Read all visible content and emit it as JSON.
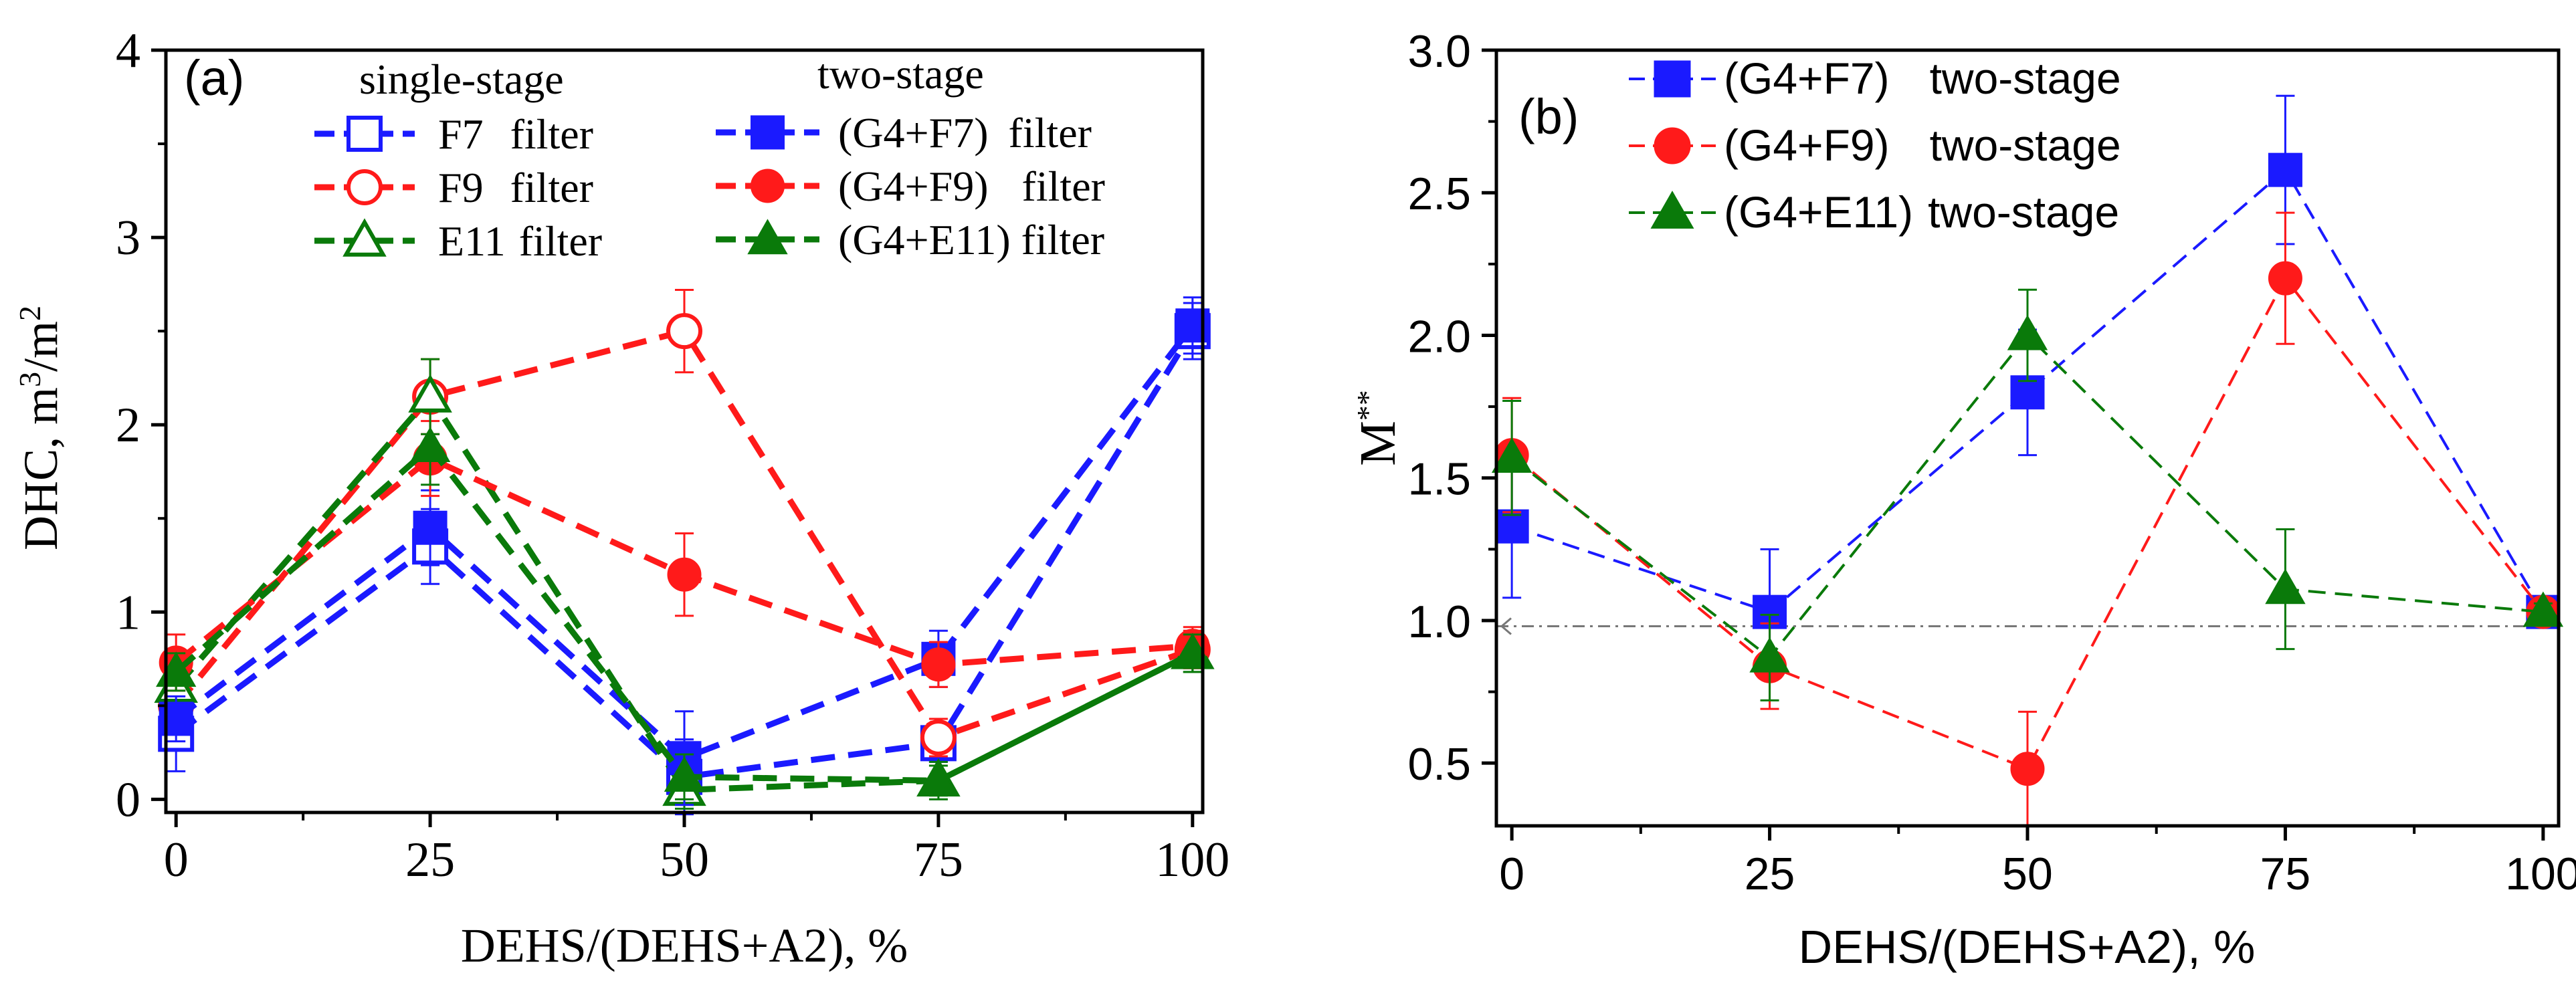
{
  "chart_data": [
    {
      "panel": "(a)",
      "type": "line",
      "xlabel": "DEHS/(DEHS+A2), %",
      "ylabel": "DHC, m",
      "ylabel_sup1": "3",
      "ylabel_mid": "/m",
      "ylabel_sup2": "2",
      "xlim": [
        -1,
        101
      ],
      "ylim": [
        -0.07,
        4.0
      ],
      "xticks": [
        0,
        25,
        50,
        75,
        100
      ],
      "xtick_labels": [
        "0",
        "25",
        "50",
        "75",
        "100"
      ],
      "yticks": [
        0,
        1,
        2,
        3,
        4
      ],
      "ytick_labels": [
        "0",
        "1",
        "2",
        "3",
        "4"
      ],
      "legend_titles": [
        "single-stage",
        "two-stage"
      ],
      "x": [
        0,
        25,
        50,
        75,
        100
      ],
      "series": [
        {
          "name": "F7",
          "label_suffix": "filter",
          "group": "single-stage",
          "color": "#1a1aff",
          "marker": "square",
          "filled": false,
          "values": [
            0.35,
            1.35,
            0.12,
            0.3,
            2.5
          ],
          "errors": [
            0.2,
            0.2,
            0.2,
            0.1,
            0.15
          ]
        },
        {
          "name": "F9",
          "label_suffix": "filter",
          "group": "single-stage",
          "color": "#ff1a1a",
          "marker": "circle",
          "filled": false,
          "values": [
            0.5,
            2.15,
            2.5,
            0.33,
            0.8
          ],
          "errors": [
            0.15,
            0.2,
            0.22,
            0.1,
            0.1
          ]
        },
        {
          "name": "E11",
          "label_suffix": "filter",
          "group": "single-stage",
          "color": "#0a7a0a",
          "marker": "triangle",
          "filled": false,
          "values": [
            0.6,
            2.15,
            0.05,
            0.1,
            0.78
          ],
          "errors": [
            0.1,
            0.2,
            0.1,
            0.08,
            0.1
          ]
        },
        {
          "name": "(G4+F7)",
          "label_suffix": "filter",
          "group": "two-stage",
          "color": "#1a1aff",
          "marker": "square",
          "filled": true,
          "values": [
            0.43,
            1.45,
            0.22,
            0.75,
            2.53
          ],
          "errors": [
            0.12,
            0.2,
            0.25,
            0.15,
            0.15
          ]
        },
        {
          "name": "(G4+F9)",
          "label_suffix": "filter",
          "group": "two-stage",
          "color": "#ff1a1a",
          "marker": "circle",
          "filled": true,
          "values": [
            0.73,
            1.82,
            1.2,
            0.72,
            0.82
          ],
          "errors": [
            0.15,
            0.2,
            0.22,
            0.12,
            0.1
          ]
        },
        {
          "name": "(G4+E11)",
          "label_suffix": "filter",
          "group": "two-stage",
          "color": "#0a7a0a",
          "marker": "triangle",
          "filled": true,
          "values": [
            0.68,
            1.88,
            0.12,
            0.1,
            0.78
          ],
          "errors": [
            0.1,
            0.2,
            0.12,
            0.1,
            0.1
          ]
        }
      ]
    },
    {
      "panel": "(b)",
      "type": "line",
      "xlabel": "DEHS/(DEHS+A2), %",
      "ylabel": "M",
      "ylabel_sup": "**",
      "xlim": [
        -1.5,
        101.5
      ],
      "ylim": [
        0.28,
        3.0
      ],
      "xticks": [
        0,
        25,
        50,
        75,
        100
      ],
      "xtick_labels": [
        "0",
        "25",
        "50",
        "75",
        "100"
      ],
      "yticks": [
        0.5,
        1.0,
        1.5,
        2.0,
        2.5,
        3.0
      ],
      "ytick_labels": [
        "0.5",
        "1.0",
        "1.5",
        "2.0",
        "2.5",
        "3.0"
      ],
      "reference_line": 0.98,
      "x": [
        0,
        25,
        50,
        75,
        100
      ],
      "series": [
        {
          "name": "(G4+F7)",
          "label_suffix": "two-stage",
          "color": "#1a1aff",
          "marker": "square",
          "filled": true,
          "values": [
            1.33,
            1.03,
            1.8,
            2.58,
            1.03
          ],
          "errors": [
            0.25,
            0.22,
            0.22,
            0.26,
            0.03
          ]
        },
        {
          "name": "(G4+F9)",
          "label_suffix": "two-stage",
          "color": "#ff1a1a",
          "marker": "circle",
          "filled": true,
          "values": [
            1.58,
            0.84,
            0.48,
            2.2,
            1.03
          ],
          "errors": [
            0.2,
            0.15,
            0.2,
            0.23,
            0.03
          ]
        },
        {
          "name": "(G4+E11)",
          "label_suffix": "two-stage",
          "color": "#0a7a0a",
          "marker": "triangle",
          "filled": true,
          "values": [
            1.57,
            0.87,
            2.0,
            1.11,
            1.03
          ],
          "errors": [
            0.2,
            0.15,
            0.16,
            0.21,
            0.03
          ]
        }
      ]
    }
  ]
}
